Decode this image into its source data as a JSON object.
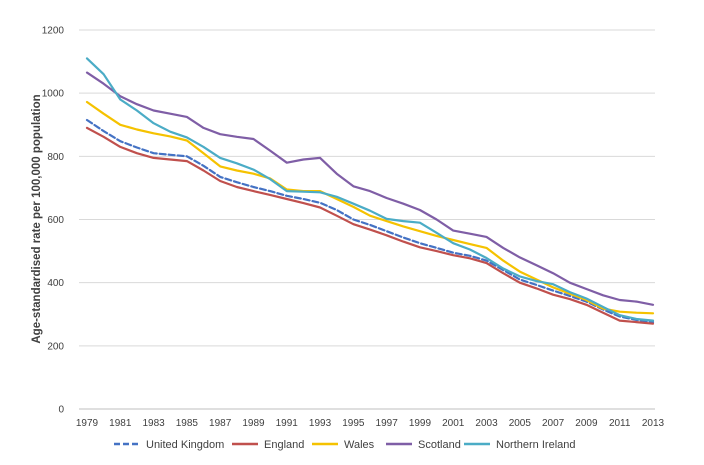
{
  "chart_data": {
    "type": "line",
    "title": "",
    "xlabel": "",
    "ylabel": "Age-standardised rate per 100,000 population",
    "ylim": [
      0,
      1200
    ],
    "xlim": [
      1979,
      2013
    ],
    "y_ticks": [
      0,
      200,
      400,
      600,
      800,
      1000,
      1200
    ],
    "x_ticks": [
      1979,
      1981,
      1983,
      1985,
      1987,
      1989,
      1991,
      1993,
      1995,
      1997,
      1999,
      2001,
      2003,
      2005,
      2007,
      2009,
      2011,
      2013
    ],
    "grid": "horizontal",
    "legend_position": "bottom",
    "x": [
      1979,
      1980,
      1981,
      1982,
      1983,
      1984,
      1985,
      1986,
      1987,
      1988,
      1989,
      1990,
      1991,
      1992,
      1993,
      1994,
      1995,
      1996,
      1997,
      1998,
      1999,
      2000,
      2001,
      2002,
      2003,
      2004,
      2005,
      2006,
      2007,
      2008,
      2009,
      2010,
      2011,
      2012,
      2013
    ],
    "series": [
      {
        "name": "United Kingdom",
        "color": "#4472c4",
        "dash": true,
        "values": [
          915,
          880,
          848,
          828,
          810,
          805,
          800,
          770,
          735,
          718,
          703,
          690,
          675,
          665,
          653,
          630,
          600,
          583,
          563,
          543,
          525,
          510,
          495,
          485,
          470,
          440,
          410,
          393,
          375,
          358,
          340,
          315,
          293,
          282,
          275
        ]
      },
      {
        "name": "England",
        "color": "#c0504d",
        "dash": false,
        "values": [
          890,
          862,
          830,
          810,
          795,
          790,
          785,
          755,
          722,
          703,
          690,
          678,
          665,
          652,
          638,
          612,
          585,
          568,
          550,
          530,
          512,
          500,
          487,
          477,
          462,
          430,
          400,
          382,
          362,
          348,
          330,
          305,
          280,
          275,
          270
        ]
      },
      {
        "name": "Wales",
        "color": "#f5c200",
        "dash": false,
        "values": [
          972,
          935,
          900,
          885,
          873,
          863,
          850,
          810,
          768,
          755,
          745,
          730,
          695,
          690,
          690,
          665,
          640,
          612,
          595,
          578,
          563,
          548,
          535,
          522,
          510,
          470,
          435,
          410,
          385,
          365,
          345,
          318,
          308,
          305,
          303
        ]
      },
      {
        "name": "Scotland",
        "color": "#7f5ea6",
        "dash": false,
        "values": [
          1065,
          1030,
          990,
          965,
          945,
          935,
          925,
          890,
          870,
          862,
          855,
          818,
          780,
          790,
          795,
          745,
          705,
          690,
          668,
          650,
          630,
          600,
          565,
          555,
          545,
          510,
          480,
          455,
          430,
          400,
          380,
          360,
          345,
          340,
          330
        ]
      },
      {
        "name": "Northern Ireland",
        "color": "#4bacc6",
        "dash": false,
        "values": [
          1110,
          1060,
          980,
          945,
          905,
          878,
          860,
          830,
          795,
          778,
          758,
          728,
          690,
          688,
          686,
          672,
          650,
          628,
          602,
          595,
          590,
          558,
          525,
          505,
          478,
          445,
          420,
          405,
          395,
          370,
          350,
          323,
          297,
          285,
          280
        ]
      }
    ]
  }
}
